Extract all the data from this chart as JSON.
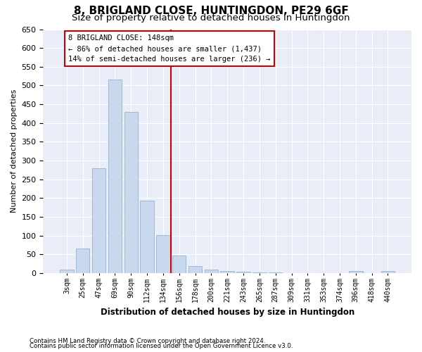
{
  "title": "8, BRIGLAND CLOSE, HUNTINGDON, PE29 6GF",
  "subtitle": "Size of property relative to detached houses in Huntingdon",
  "xlabel": "Distribution of detached houses by size in Huntingdon",
  "ylabel": "Number of detached properties",
  "footnote1": "Contains HM Land Registry data © Crown copyright and database right 2024.",
  "footnote2": "Contains public sector information licensed under the Open Government Licence v3.0.",
  "bar_labels": [
    "3sqm",
    "25sqm",
    "47sqm",
    "69sqm",
    "90sqm",
    "112sqm",
    "134sqm",
    "156sqm",
    "178sqm",
    "200sqm",
    "221sqm",
    "243sqm",
    "265sqm",
    "287sqm",
    "309sqm",
    "331sqm",
    "353sqm",
    "374sqm",
    "396sqm",
    "418sqm",
    "440sqm"
  ],
  "bar_values": [
    10,
    65,
    280,
    515,
    430,
    193,
    102,
    46,
    18,
    10,
    5,
    4,
    1,
    1,
    0,
    0,
    0,
    0,
    5,
    0,
    5
  ],
  "bar_color": "#c8d8ee",
  "bar_edgecolor": "#9ab0cc",
  "vline_color": "#cc0000",
  "annotation_text": "8 BRIGLAND CLOSE: 148sqm\n← 86% of detached houses are smaller (1,437)\n14% of semi-detached houses are larger (236) →",
  "annotation_box_color": "#ffffff",
  "annotation_box_edgecolor": "#cc0000",
  "ylim": [
    0,
    650
  ],
  "yticks": [
    0,
    50,
    100,
    150,
    200,
    250,
    300,
    350,
    400,
    450,
    500,
    550,
    600,
    650
  ],
  "plot_bg_color": "#e8edf7",
  "title_fontsize": 11,
  "subtitle_fontsize": 9.5
}
